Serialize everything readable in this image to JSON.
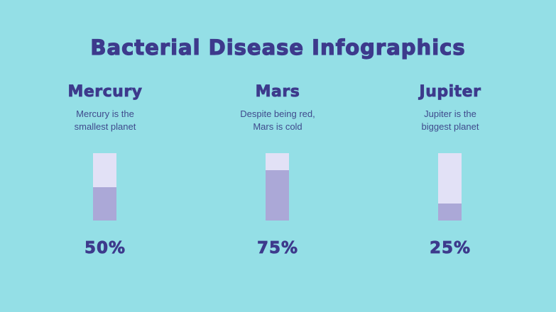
{
  "title": "Bacterial Disease Infographics",
  "colors": {
    "background": "#94dfe6",
    "text": "#3d3a8c",
    "track": "#e2e1f6",
    "fill": "#aba8d7"
  },
  "chart_data": {
    "type": "bar",
    "categories": [
      "Mercury",
      "Mars",
      "Jupiter"
    ],
    "values": [
      50,
      75,
      25
    ],
    "labels": [
      "50%",
      "75%",
      "25%"
    ],
    "ylim": [
      0,
      100
    ],
    "descriptions": [
      "Mercury is the\nsmallest planet",
      "Despite being red,\nMars is cold",
      "Jupiter is the\nbiggest planet"
    ]
  },
  "items": [
    {
      "name": "Mercury",
      "desc1": "Mercury is the",
      "desc2": "smallest planet",
      "pct": "50%"
    },
    {
      "name": "Mars",
      "desc1": "Despite being red,",
      "desc2": "Mars is cold",
      "pct": "75%"
    },
    {
      "name": "Jupiter",
      "desc1": "Jupiter is the",
      "desc2": "biggest planet",
      "pct": "25%"
    }
  ]
}
